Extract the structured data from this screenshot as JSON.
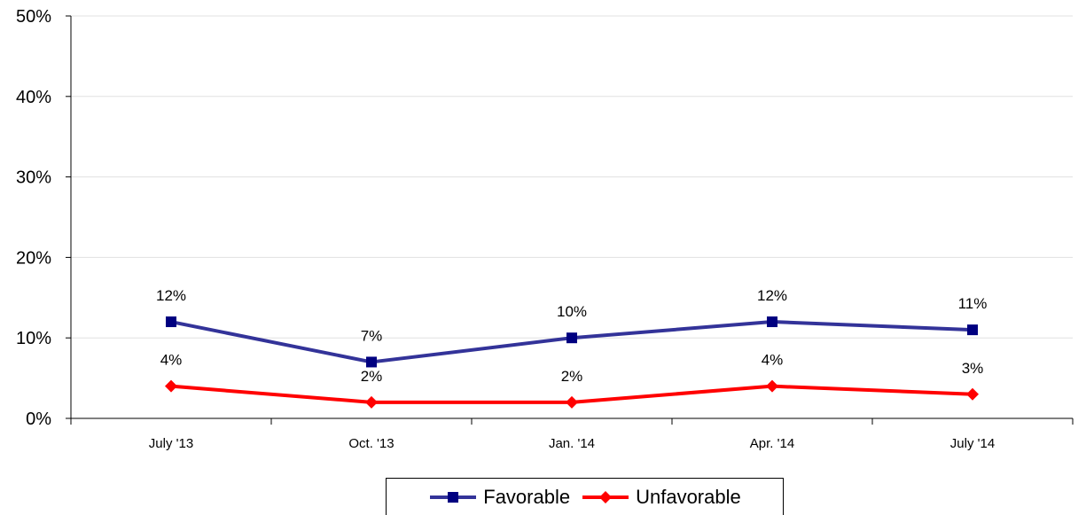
{
  "chart_data": {
    "type": "line",
    "categories": [
      "July '13",
      "Oct. '13",
      "Jan. '14",
      "Apr. '14",
      "July '14"
    ],
    "ylim": [
      0,
      50
    ],
    "yticks": [
      "0%",
      "10%",
      "20%",
      "30%",
      "40%",
      "50%"
    ],
    "grid": true,
    "legend_position": "bottom",
    "series": [
      {
        "name": "Favorable",
        "values": [
          12,
          7,
          10,
          12,
          11
        ],
        "labels": [
          "12%",
          "7%",
          "10%",
          "12%",
          "11%"
        ],
        "color": "#333399",
        "marker": "square"
      },
      {
        "name": "Unfavorable",
        "values": [
          4,
          2,
          2,
          4,
          3
        ],
        "labels": [
          "4%",
          "2%",
          "2%",
          "4%",
          "3%"
        ],
        "color": "#ff0000",
        "marker": "diamond"
      }
    ]
  }
}
